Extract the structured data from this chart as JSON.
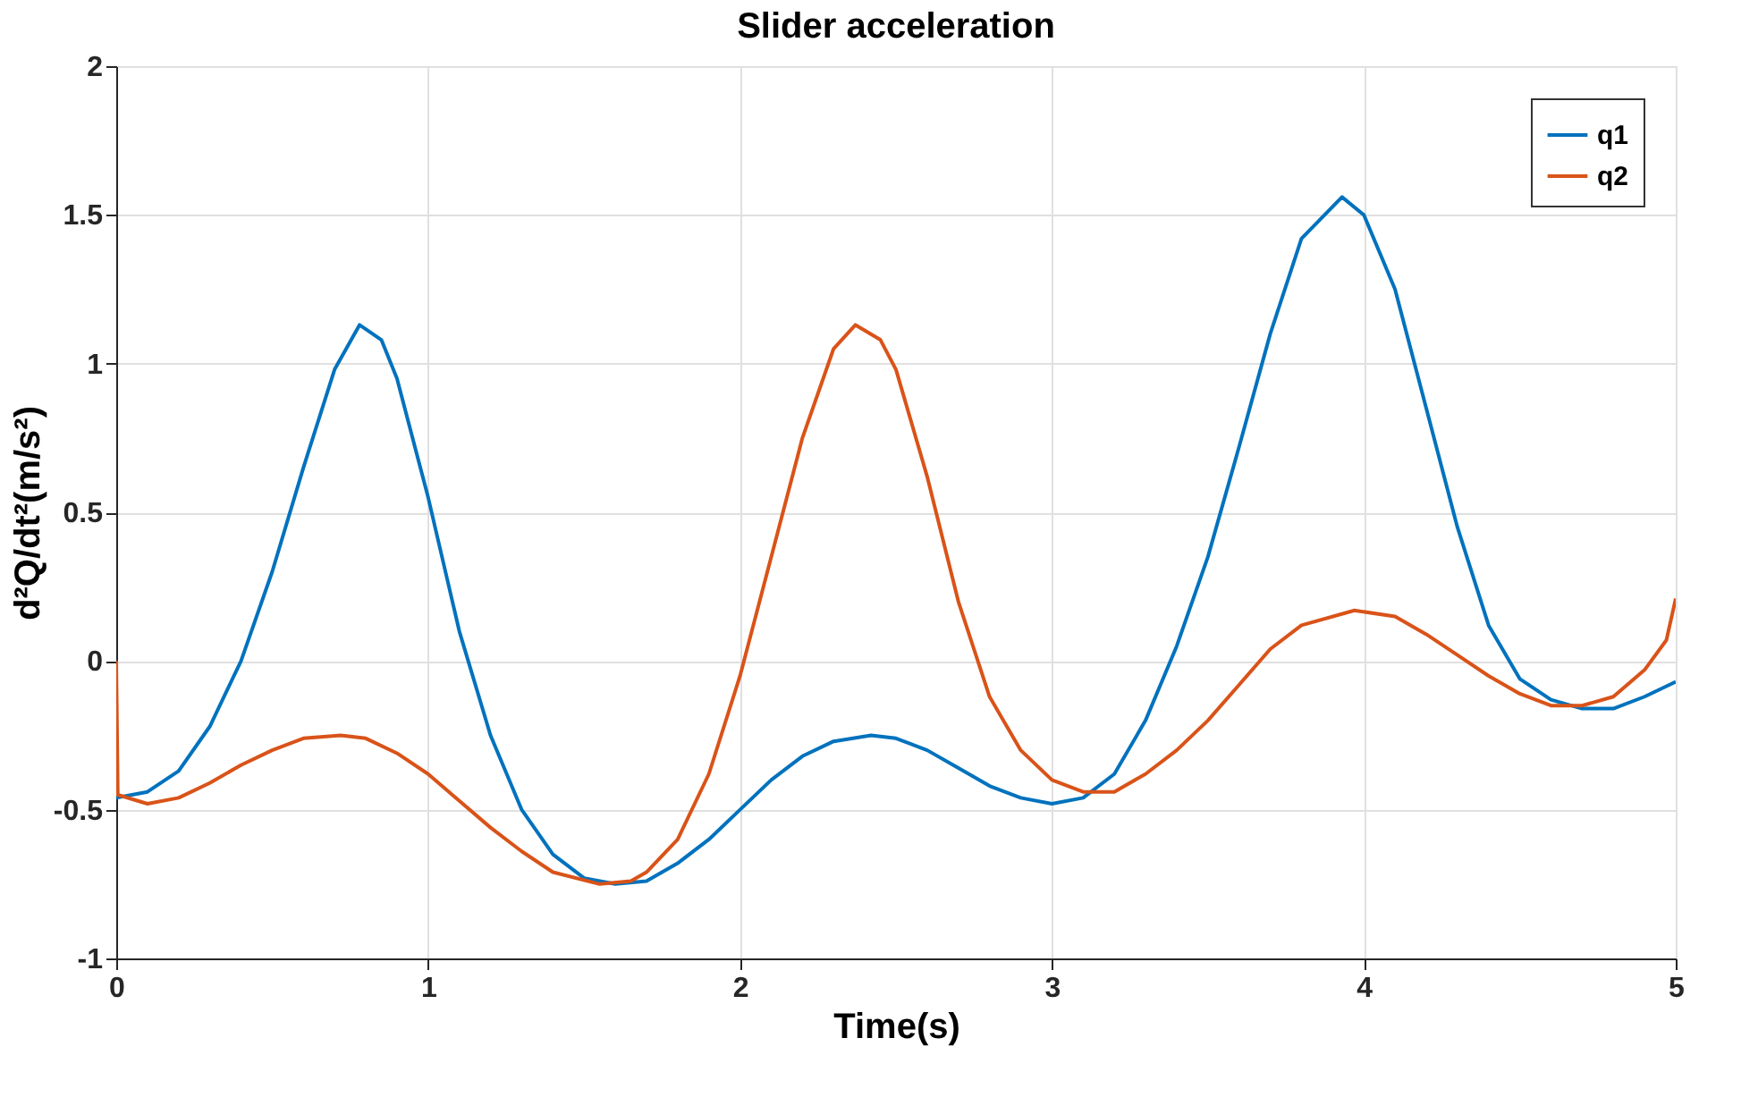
{
  "chart_data": {
    "type": "line",
    "title": "Slider acceleration",
    "xlabel": "Time(s)",
    "ylabel": "d²Q/dt²(m/s²)",
    "xlim": [
      0,
      5
    ],
    "ylim": [
      -1,
      2
    ],
    "xticks": [
      0,
      1,
      2,
      3,
      4,
      5
    ],
    "yticks": [
      -1,
      -0.5,
      0,
      0.5,
      1,
      1.5,
      2
    ],
    "grid": true,
    "legend": "top right",
    "line_style": "solid",
    "marker": "none",
    "series": [
      {
        "name": "q1",
        "color": "#0072bd",
        "x": [
          0,
          0.1,
          0.2,
          0.3,
          0.4,
          0.5,
          0.6,
          0.7,
          0.78,
          0.85,
          0.9,
          1.0,
          1.1,
          1.2,
          1.3,
          1.4,
          1.5,
          1.6,
          1.7,
          1.8,
          1.9,
          2.0,
          2.1,
          2.2,
          2.3,
          2.42,
          2.5,
          2.6,
          2.7,
          2.8,
          2.9,
          3.0,
          3.1,
          3.2,
          3.3,
          3.4,
          3.5,
          3.6,
          3.7,
          3.8,
          3.93,
          4.0,
          4.1,
          4.2,
          4.3,
          4.4,
          4.5,
          4.6,
          4.7,
          4.8,
          4.9,
          5.0
        ],
        "values": [
          -0.46,
          -0.44,
          -0.37,
          -0.22,
          0.0,
          0.3,
          0.65,
          0.98,
          1.13,
          1.08,
          0.95,
          0.55,
          0.1,
          -0.25,
          -0.5,
          -0.65,
          -0.73,
          -0.75,
          -0.74,
          -0.68,
          -0.6,
          -0.5,
          -0.4,
          -0.32,
          -0.27,
          -0.25,
          -0.26,
          -0.3,
          -0.36,
          -0.42,
          -0.46,
          -0.48,
          -0.46,
          -0.38,
          -0.2,
          0.05,
          0.35,
          0.72,
          1.1,
          1.42,
          1.56,
          1.5,
          1.25,
          0.85,
          0.45,
          0.12,
          -0.06,
          -0.13,
          -0.16,
          -0.16,
          -0.12,
          -0.07
        ]
      },
      {
        "name": "q2",
        "color": "#d95319",
        "x": [
          0,
          0.005,
          0.1,
          0.2,
          0.3,
          0.4,
          0.5,
          0.6,
          0.72,
          0.8,
          0.9,
          1.0,
          1.1,
          1.2,
          1.3,
          1.4,
          1.55,
          1.65,
          1.7,
          1.8,
          1.9,
          2.0,
          2.1,
          2.2,
          2.3,
          2.37,
          2.45,
          2.5,
          2.6,
          2.7,
          2.8,
          2.9,
          3.0,
          3.1,
          3.2,
          3.3,
          3.4,
          3.5,
          3.6,
          3.7,
          3.8,
          3.97,
          4.1,
          4.2,
          4.3,
          4.4,
          4.5,
          4.6,
          4.7,
          4.8,
          4.9,
          4.97,
          5.0
        ],
        "values": [
          0.0,
          -0.45,
          -0.48,
          -0.46,
          -0.41,
          -0.35,
          -0.3,
          -0.26,
          -0.25,
          -0.26,
          -0.31,
          -0.38,
          -0.47,
          -0.56,
          -0.64,
          -0.71,
          -0.75,
          -0.74,
          -0.71,
          -0.6,
          -0.38,
          -0.05,
          0.35,
          0.75,
          1.05,
          1.13,
          1.08,
          0.98,
          0.62,
          0.2,
          -0.12,
          -0.3,
          -0.4,
          -0.44,
          -0.44,
          -0.38,
          -0.3,
          -0.2,
          -0.08,
          0.04,
          0.12,
          0.17,
          0.15,
          0.09,
          0.02,
          -0.05,
          -0.11,
          -0.15,
          -0.15,
          -0.12,
          -0.03,
          0.07,
          0.21
        ]
      }
    ]
  }
}
